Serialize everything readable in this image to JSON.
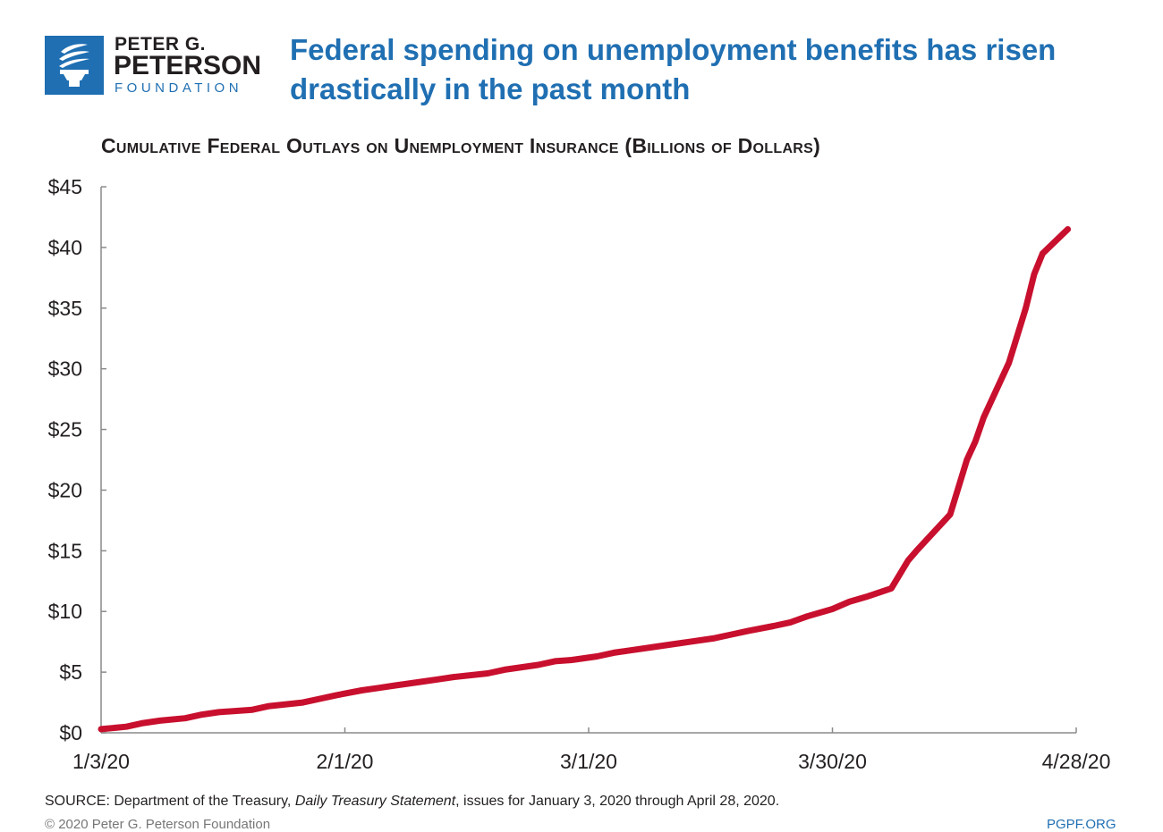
{
  "brand": {
    "line1": "PETER G.",
    "line2": "PETERSON",
    "line3": "FOUNDATION",
    "color": "#1f6fb2"
  },
  "headline": "Federal spending on unemployment benefits has risen drastically in the past month",
  "footer": {
    "source_prefix": "SOURCE: Department of the Treasury,",
    "source_publication": "Daily Treasury Statement",
    "source_suffix": ", issues for January 3, 2020 through April 28, 2020.",
    "copyright": "© 2020 Peter G. Peterson Foundation",
    "site": "PGPF.ORG"
  },
  "chart_data": {
    "type": "line",
    "title": "Cumulative Federal Outlays on Unemployment Insurance (Billions of Dollars)",
    "xlabel": "",
    "ylabel": "",
    "grid": false,
    "line_color": "#c8102e",
    "x_ticks": [
      "1/3/20",
      "2/1/20",
      "3/1/20",
      "3/30/20",
      "4/28/20"
    ],
    "y_ticks": [
      "$0",
      "$5",
      "$10",
      "$15",
      "$20",
      "$25",
      "$30",
      "$35",
      "$40",
      "$45"
    ],
    "xlim": [
      "2020-01-03",
      "2020-04-28"
    ],
    "ylim": [
      0,
      45
    ],
    "series": [
      {
        "x": [
          "2020-01-03",
          "2020-01-06",
          "2020-01-08",
          "2020-01-10",
          "2020-01-13",
          "2020-01-15",
          "2020-01-17",
          "2020-01-21",
          "2020-01-23",
          "2020-01-27",
          "2020-01-29",
          "2020-01-31",
          "2020-02-03",
          "2020-02-05",
          "2020-02-07",
          "2020-02-10",
          "2020-02-12",
          "2020-02-14",
          "2020-02-18",
          "2020-02-20",
          "2020-02-24",
          "2020-02-26",
          "2020-02-28",
          "2020-03-02",
          "2020-03-04",
          "2020-03-06",
          "2020-03-09",
          "2020-03-11",
          "2020-03-13",
          "2020-03-16",
          "2020-03-18",
          "2020-03-20",
          "2020-03-23",
          "2020-03-25",
          "2020-03-27",
          "2020-03-30",
          "2020-04-01",
          "2020-04-03",
          "2020-04-06",
          "2020-04-08",
          "2020-04-09",
          "2020-04-13",
          "2020-04-15",
          "2020-04-16",
          "2020-04-17",
          "2020-04-20",
          "2020-04-22",
          "2020-04-23",
          "2020-04-24",
          "2020-04-27"
        ],
        "y": [
          0.3,
          0.5,
          0.8,
          1.0,
          1.2,
          1.5,
          1.7,
          1.9,
          2.2,
          2.5,
          2.8,
          3.1,
          3.5,
          3.7,
          3.9,
          4.2,
          4.4,
          4.6,
          4.9,
          5.2,
          5.6,
          5.9,
          6.0,
          6.3,
          6.6,
          6.8,
          7.1,
          7.3,
          7.5,
          7.8,
          8.1,
          8.4,
          8.8,
          9.1,
          9.6,
          10.2,
          10.8,
          11.2,
          11.9,
          14.2,
          15.0,
          18.0,
          22.5,
          24.0,
          26.0,
          30.5,
          35.0,
          37.8,
          39.5,
          41.5
        ]
      }
    ]
  }
}
